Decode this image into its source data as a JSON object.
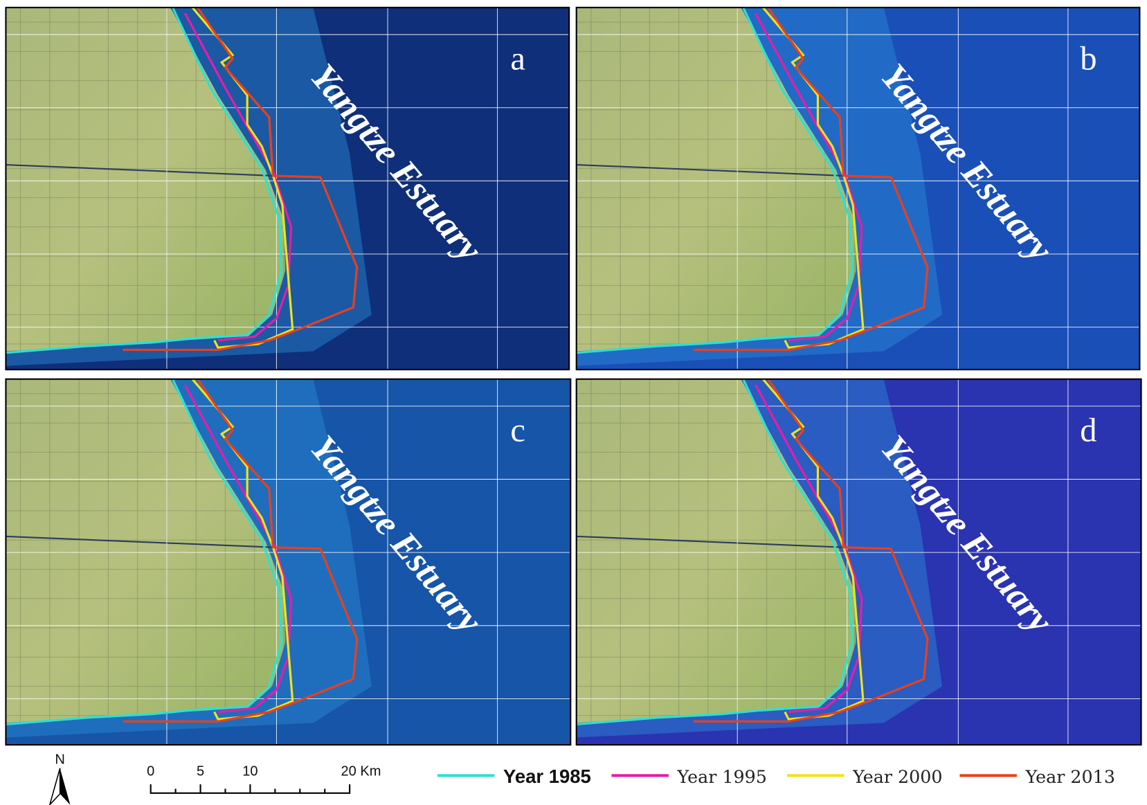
{
  "panels": [
    {
      "label": "a",
      "title": "Yangtze Estuary"
    },
    {
      "label": "b",
      "title": "Yangtze Estuary"
    },
    {
      "label": "c",
      "title": "Yangtze Estuary"
    },
    {
      "label": "d",
      "title": "Yangtze Estuary"
    }
  ],
  "legend": [
    {
      "label": "Year 1985",
      "color": "#2ee0d0"
    },
    {
      "label": "Year 1995",
      "color": "#e81ca8"
    },
    {
      "label": "Year 2000",
      "color": "#f2e21a"
    },
    {
      "label": "Year 2013",
      "color": "#e8401e"
    }
  ],
  "scale_bar": {
    "labels": [
      "0",
      "5",
      "10",
      "20 Km"
    ]
  },
  "north_arrow": "N"
}
